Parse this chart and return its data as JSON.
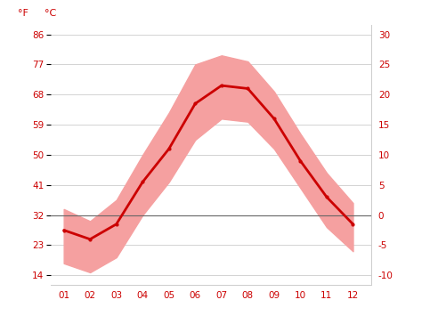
{
  "months": [
    1,
    2,
    3,
    4,
    5,
    6,
    7,
    8,
    9,
    10,
    11,
    12
  ],
  "month_labels": [
    "01",
    "02",
    "03",
    "04",
    "05",
    "06",
    "07",
    "08",
    "09",
    "10",
    "11",
    "12"
  ],
  "avg_temp_c": [
    -2.5,
    -4.0,
    -1.5,
    5.5,
    11.0,
    18.5,
    21.5,
    21.0,
    16.0,
    9.0,
    3.0,
    -1.5
  ],
  "max_temp_c": [
    1.0,
    -1.0,
    2.5,
    10.0,
    17.0,
    25.0,
    26.5,
    25.5,
    20.5,
    13.5,
    7.0,
    2.0
  ],
  "min_temp_c": [
    -8.0,
    -9.5,
    -7.0,
    0.0,
    5.5,
    12.5,
    16.0,
    15.5,
    11.0,
    4.5,
    -2.0,
    -6.0
  ],
  "y_ticks_c": [
    -10,
    -5,
    0,
    5,
    10,
    15,
    20,
    25,
    30
  ],
  "y_ticks_f": [
    14,
    23,
    32,
    41,
    50,
    59,
    68,
    77,
    86
  ],
  "ylim_c": [
    -11.5,
    31.5
  ],
  "line_color": "#cc0000",
  "band_color": "#f5a0a0",
  "zero_line_color": "#666666",
  "grid_color": "#cccccc",
  "label_color": "#cc0000",
  "bg_color": "#ffffff",
  "tick_label_fontsize": 7.5,
  "header_fontsize": 8
}
